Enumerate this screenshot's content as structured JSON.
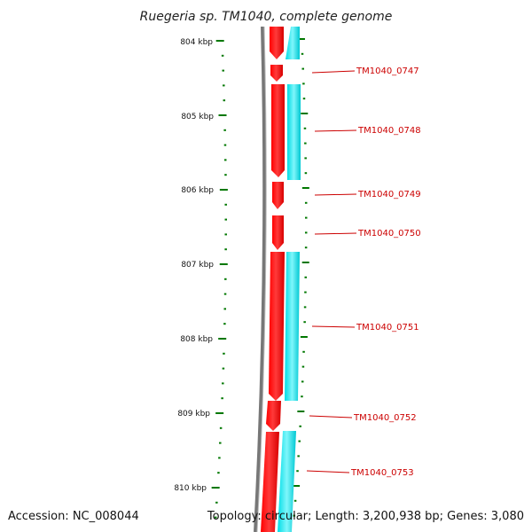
{
  "title": "Ruegeria sp. TM1040, complete genome",
  "accession_text": "Accession: NC_008044",
  "topology_text": "Topology: circular; Length: 3,200,938 bp; Genes: 3,080",
  "colors": {
    "backbone": "#7a7a7a",
    "forward_gene": "#ff0000",
    "reverse_gene": "#00e5ee",
    "tick": "#007700",
    "label": "#cc0000"
  },
  "kbp_labels": [
    "804 kbp",
    "805 kbp",
    "806 kbp",
    "807 kbp",
    "808 kbp",
    "809 kbp",
    "810 kbp"
  ],
  "genes": [
    {
      "label": "TM1040_0747"
    },
    {
      "label": "TM1040_0748"
    },
    {
      "label": "TM1040_0749"
    },
    {
      "label": "TM1040_0750"
    },
    {
      "label": "TM1040_0751"
    },
    {
      "label": "TM1040_0752"
    },
    {
      "label": "TM1040_0753"
    }
  ]
}
